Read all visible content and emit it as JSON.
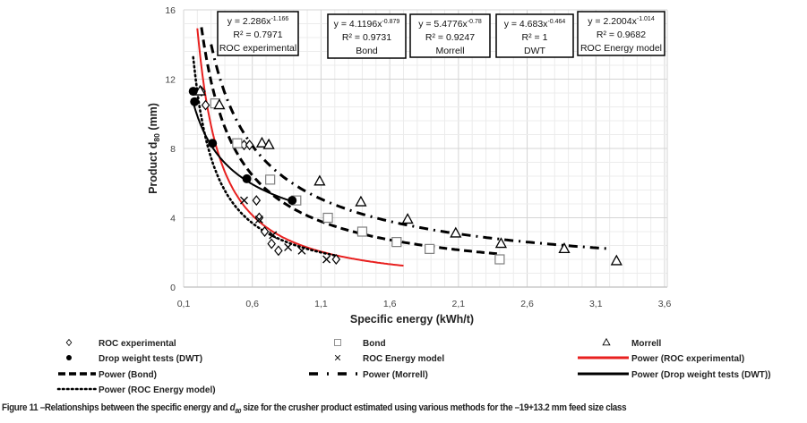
{
  "chart_data": {
    "type": "scatter",
    "xlabel": "Specific energy (kWh/t)",
    "ylabel_main": "Product d",
    "ylabel_sub": "80",
    "ylabel_unit": " (mm)",
    "xlim": [
      0.1,
      3.6
    ],
    "ylim": [
      0,
      16
    ],
    "xticks": [
      "0,1",
      "0,6",
      "1,1",
      "1,6",
      "2,1",
      "2,6",
      "3,1",
      "3,6"
    ],
    "xtick_values": [
      0.1,
      0.6,
      1.1,
      1.6,
      2.1,
      2.6,
      3.1,
      3.6
    ],
    "yticks": [
      "0",
      "4",
      "8",
      "12",
      "16"
    ],
    "ytick_values": [
      0,
      4,
      8,
      12,
      16
    ],
    "grid": true,
    "legend_position": "bottom",
    "series": [
      {
        "name": "ROC experimental",
        "marker": "diamond",
        "color": "#000000",
        "x": [
          0.23,
          0.26,
          0.54,
          0.58,
          0.63,
          0.65,
          0.69,
          0.74,
          0.79,
          1.21
        ],
        "y": [
          11.3,
          10.5,
          8.2,
          8.2,
          5.0,
          4.0,
          3.2,
          2.5,
          2.1,
          1.6
        ]
      },
      {
        "name": "Bond",
        "marker": "square",
        "color": "#7f7f7f",
        "x": [
          0.33,
          0.49,
          0.73,
          0.92,
          1.15,
          1.4,
          1.65,
          1.89,
          2.4
        ],
        "y": [
          10.6,
          8.3,
          6.2,
          5.0,
          4.0,
          3.2,
          2.6,
          2.2,
          1.6
        ]
      },
      {
        "name": "Morrell",
        "marker": "triangle",
        "color": "#000000",
        "x": [
          0.22,
          0.36,
          0.67,
          0.72,
          1.09,
          1.39,
          1.73,
          2.08,
          2.41,
          2.87,
          3.25
        ],
        "y": [
          11.3,
          10.5,
          8.3,
          8.2,
          6.1,
          4.9,
          3.9,
          3.1,
          2.5,
          2.2,
          1.5
        ]
      },
      {
        "name": "Drop weight tests (DWT)",
        "marker": "circle",
        "color": "#000000",
        "x": [
          0.17,
          0.18,
          0.31,
          0.56,
          0.89
        ],
        "y": [
          11.3,
          10.7,
          8.3,
          6.25,
          5.0
        ]
      },
      {
        "name": "ROC Energy model",
        "marker": "x",
        "color": "#000000",
        "x": [
          0.54,
          0.65,
          0.75,
          0.86,
          0.96,
          1.14
        ],
        "y": [
          5.0,
          3.9,
          3.0,
          2.3,
          2.1,
          1.6
        ]
      }
    ],
    "trendlines": [
      {
        "name": "Power (ROC experimental)",
        "a": 2.286,
        "b": -1.166,
        "r2": 0.7971,
        "xrange": [
          0.2,
          1.7
        ],
        "style": "solid",
        "color": "#e8201f",
        "eq_label": "y = 2.286x",
        "exp_label": "-1.166",
        "r2_label": "R² = 0.7971",
        "box_label": "ROC experimental"
      },
      {
        "name": "Power (Bond)",
        "a": 4.1196,
        "b": -0.879,
        "r2": 0.9731,
        "xrange": [
          0.23,
          2.4
        ],
        "style": "dash",
        "color": "#000000",
        "eq_label": "y = 4.1196x",
        "exp_label": "-0.879",
        "r2_label": "R² = 0.9731",
        "box_label": "Bond"
      },
      {
        "name": "Power (Morrell)",
        "a": 5.4776,
        "b": -0.78,
        "r2": 0.9247,
        "xrange": [
          0.3,
          3.2
        ],
        "style": "dashdot",
        "color": "#000000",
        "eq_label": "y = 5.4776x",
        "exp_label": "-0.78",
        "r2_label": "R² = 0.9247",
        "box_label": "Morrell"
      },
      {
        "name": "Power (Drop weight tests (DWT))",
        "a": 4.683,
        "b": -0.464,
        "r2": 1,
        "xrange": [
          0.17,
          0.9
        ],
        "style": "solid",
        "color": "#000000",
        "eq_label": "y = 4.683x",
        "exp_label": "-0.464",
        "r2_label": "R² = 1",
        "box_label": "DWT"
      },
      {
        "name": "Power (ROC Energy model)",
        "a": 2.2004,
        "b": -1.014,
        "r2": 0.9682,
        "xrange": [
          0.17,
          1.2
        ],
        "style": "dot",
        "color": "#000000",
        "eq_label": "y = 2.2004x",
        "exp_label": "-1.014",
        "r2_label": "R² = 0.9682",
        "box_label": "ROC Energy model"
      }
    ],
    "legend": [
      "ROC experimental",
      "Bond",
      "Morrell",
      "Drop weight tests (DWT)",
      "ROC Energy model",
      "Power (ROC experimental)",
      "Power (Bond)",
      "Power (Morrell)",
      "Power (Drop weight tests (DWT))",
      "Power (ROC Energy model)"
    ]
  },
  "caption": {
    "prefix": "Figure 11 –Relationships between the specific energy and ",
    "d": "d",
    "d_sub": "80",
    "suffix": " size for the crusher product estimated using various methods for the –19+13.2 mm feed size class"
  }
}
